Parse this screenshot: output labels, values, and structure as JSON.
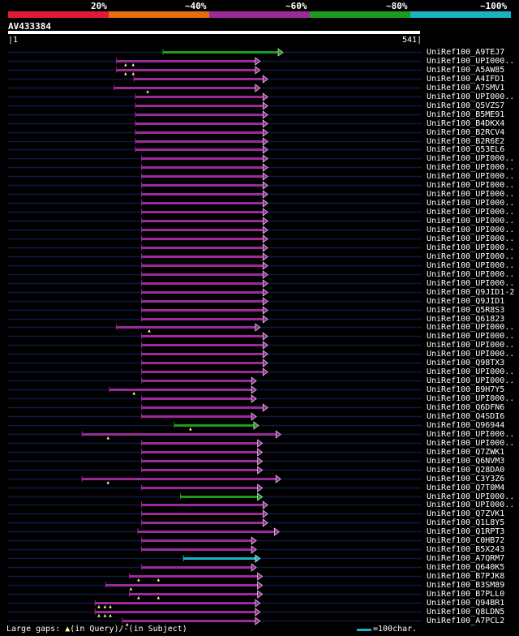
{
  "legend": [
    {
      "label": "20%",
      "color": "#e31a35"
    },
    {
      "label": "~40%",
      "color": "#e26d13"
    },
    {
      "label": "~60%",
      "color": "#9b2a9b"
    },
    {
      "label": "~80%",
      "color": "#1c9c1c"
    },
    {
      "label": "~100%",
      "color": "#1ab3c1"
    }
  ],
  "query": {
    "name": "AV433384",
    "start": "1",
    "end": "541"
  },
  "footer": {
    "gaps_prefix": "Large gaps: ",
    "gaps_query": "(in Query)/",
    "gaps_subject": "(in Subject)",
    "scale": "=100char."
  },
  "chart_data": {
    "type": "alignment-overview",
    "query_length": 541,
    "rows": [
      {
        "name": "UniRef100_A9TEJ7",
        "s": 204,
        "e": 355,
        "c": "green",
        "m": []
      },
      {
        "name": "UniRef100_UPI000..",
        "s": 143,
        "e": 325,
        "c": "purple",
        "m": [
          155,
          165
        ]
      },
      {
        "name": "UniRef100_A5AW85",
        "s": 143,
        "e": 325,
        "c": "purple",
        "m": [
          155,
          165
        ]
      },
      {
        "name": "UniRef100_A4IFD1",
        "s": 166,
        "e": 335,
        "c": "purple",
        "m": []
      },
      {
        "name": "UniRef100_A7SMV1",
        "s": 140,
        "e": 325,
        "c": "purple",
        "m": [
          184
        ]
      },
      {
        "name": "UniRef100_UPI000..",
        "s": 168,
        "e": 335,
        "c": "purple",
        "m": []
      },
      {
        "name": "UniRef100_Q5VZS7",
        "s": 168,
        "e": 335,
        "c": "purple",
        "m": []
      },
      {
        "name": "UniRef100_B5ME91",
        "s": 168,
        "e": 335,
        "c": "purple",
        "m": []
      },
      {
        "name": "UniRef100_B4DKX4",
        "s": 168,
        "e": 335,
        "c": "purple",
        "m": []
      },
      {
        "name": "UniRef100_B2RCV4",
        "s": 168,
        "e": 335,
        "c": "purple",
        "m": []
      },
      {
        "name": "UniRef100_B2R6E2",
        "s": 168,
        "e": 335,
        "c": "purple",
        "m": []
      },
      {
        "name": "UniRef100_Q53EL6",
        "s": 168,
        "e": 335,
        "c": "purple",
        "m": []
      },
      {
        "name": "UniRef100_UPI000..",
        "s": 176,
        "e": 335,
        "c": "purple",
        "m": []
      },
      {
        "name": "UniRef100_UPI000..",
        "s": 176,
        "e": 335,
        "c": "purple",
        "m": []
      },
      {
        "name": "UniRef100_UPI000..",
        "s": 176,
        "e": 335,
        "c": "purple",
        "m": []
      },
      {
        "name": "UniRef100_UPI000..",
        "s": 176,
        "e": 335,
        "c": "purple",
        "m": []
      },
      {
        "name": "UniRef100_UPI000..",
        "s": 176,
        "e": 335,
        "c": "purple",
        "m": []
      },
      {
        "name": "UniRef100_UPI000..",
        "s": 176,
        "e": 335,
        "c": "purple",
        "m": []
      },
      {
        "name": "UniRef100_UPI000..",
        "s": 176,
        "e": 335,
        "c": "purple",
        "m": []
      },
      {
        "name": "UniRef100_UPI000..",
        "s": 176,
        "e": 335,
        "c": "purple",
        "m": []
      },
      {
        "name": "UniRef100_UPI000..",
        "s": 176,
        "e": 335,
        "c": "purple",
        "m": []
      },
      {
        "name": "UniRef100_UPI000..",
        "s": 176,
        "e": 335,
        "c": "purple",
        "m": []
      },
      {
        "name": "UniRef100_UPI000..",
        "s": 176,
        "e": 335,
        "c": "purple",
        "m": []
      },
      {
        "name": "UniRef100_UPI000..",
        "s": 176,
        "e": 335,
        "c": "purple",
        "m": []
      },
      {
        "name": "UniRef100_UPI000..",
        "s": 176,
        "e": 335,
        "c": "purple",
        "m": []
      },
      {
        "name": "UniRef100_UPI000..",
        "s": 176,
        "e": 335,
        "c": "purple",
        "m": []
      },
      {
        "name": "UniRef100_UPI000..",
        "s": 176,
        "e": 335,
        "c": "purple",
        "m": []
      },
      {
        "name": "UniRef100_Q9JID1-2",
        "s": 176,
        "e": 335,
        "c": "purple",
        "m": []
      },
      {
        "name": "UniRef100_Q9JID1",
        "s": 176,
        "e": 335,
        "c": "purple",
        "m": []
      },
      {
        "name": "UniRef100_Q5R8S3",
        "s": 176,
        "e": 335,
        "c": "purple",
        "m": []
      },
      {
        "name": "UniRef100_Q61823",
        "s": 176,
        "e": 335,
        "c": "purple",
        "m": []
      },
      {
        "name": "UniRef100_UPI000..",
        "s": 143,
        "e": 325,
        "c": "purple",
        "m": [
          186
        ]
      },
      {
        "name": "UniRef100_UPI000..",
        "s": 176,
        "e": 335,
        "c": "purple",
        "m": []
      },
      {
        "name": "UniRef100_UPI000..",
        "s": 176,
        "e": 335,
        "c": "purple",
        "m": []
      },
      {
        "name": "UniRef100_UPI000..",
        "s": 176,
        "e": 335,
        "c": "purple",
        "m": []
      },
      {
        "name": "UniRef100_Q98TX3",
        "s": 176,
        "e": 335,
        "c": "purple",
        "m": []
      },
      {
        "name": "UniRef100_UPI000..",
        "s": 176,
        "e": 335,
        "c": "purple",
        "m": []
      },
      {
        "name": "UniRef100_UPI000..",
        "s": 176,
        "e": 320,
        "c": "purple",
        "m": []
      },
      {
        "name": "UniRef100_B9H7Y5",
        "s": 134,
        "e": 320,
        "c": "purple",
        "m": [
          166
        ]
      },
      {
        "name": "UniRef100_UPI000..",
        "s": 176,
        "e": 320,
        "c": "purple",
        "m": []
      },
      {
        "name": "UniRef100_Q6DFN6",
        "s": 176,
        "e": 335,
        "c": "purple",
        "m": []
      },
      {
        "name": "UniRef100_Q4SDI6",
        "s": 176,
        "e": 320,
        "c": "purple",
        "m": []
      },
      {
        "name": "UniRef100_Q96944",
        "s": 219,
        "e": 323,
        "c": "green",
        "m": [
          240
        ]
      },
      {
        "name": "UniRef100_UPI000..",
        "s": 98,
        "e": 352,
        "c": "purple",
        "m": [
          132
        ]
      },
      {
        "name": "UniRef100_UPI000..",
        "s": 176,
        "e": 328,
        "c": "purple",
        "m": []
      },
      {
        "name": "UniRef100_Q7ZWK1",
        "s": 176,
        "e": 328,
        "c": "purple",
        "m": []
      },
      {
        "name": "UniRef100_Q6NVM3",
        "s": 176,
        "e": 328,
        "c": "purple",
        "m": []
      },
      {
        "name": "UniRef100_Q28DA0",
        "s": 176,
        "e": 328,
        "c": "purple",
        "m": []
      },
      {
        "name": "UniRef100_C3Y3Z6",
        "s": 98,
        "e": 352,
        "c": "purple",
        "m": [
          132
        ]
      },
      {
        "name": "UniRef100_Q7T0M4",
        "s": 176,
        "e": 328,
        "c": "purple",
        "m": []
      },
      {
        "name": "UniRef100_UPI000..",
        "s": 227,
        "e": 328,
        "c": "green",
        "m": []
      },
      {
        "name": "UniRef100_UPI000..",
        "s": 176,
        "e": 335,
        "c": "purple",
        "m": []
      },
      {
        "name": "UniRef100_Q7ZVK1",
        "s": 176,
        "e": 335,
        "c": "purple",
        "m": []
      },
      {
        "name": "UniRef100_Q1L8Y5",
        "s": 176,
        "e": 335,
        "c": "purple",
        "m": []
      },
      {
        "name": "UniRef100_Q1RPT3",
        "s": 171,
        "e": 350,
        "c": "purple",
        "m": []
      },
      {
        "name": "UniRef100_C0HB72",
        "s": 176,
        "e": 320,
        "c": "purple",
        "m": []
      },
      {
        "name": "UniRef100_B5X243",
        "s": 176,
        "e": 320,
        "c": "purple",
        "m": []
      },
      {
        "name": "UniRef100_A7QRM7",
        "s": 231,
        "e": 325,
        "c": "cyan",
        "m": []
      },
      {
        "name": "UniRef100_Q640K5",
        "s": 176,
        "e": 320,
        "c": "purple",
        "m": []
      },
      {
        "name": "UniRef100_B7PJK8",
        "s": 160,
        "e": 328,
        "c": "purple",
        "m": [
          172,
          198
        ]
      },
      {
        "name": "UniRef100_B3SM89",
        "s": 129,
        "e": 328,
        "c": "purple",
        "m": [
          162
        ]
      },
      {
        "name": "UniRef100_B7PLL0",
        "s": 160,
        "e": 328,
        "c": "purple",
        "m": [
          172,
          198
        ]
      },
      {
        "name": "UniRef100_Q94BR1",
        "s": 115,
        "e": 325,
        "c": "purple",
        "m": [
          120,
          128,
          135
        ]
      },
      {
        "name": "UniRef100_Q8LDN5",
        "s": 115,
        "e": 325,
        "c": "purple",
        "m": [
          120,
          128,
          135
        ]
      },
      {
        "name": "UniRef100_A7PCL2",
        "s": 151,
        "e": 325,
        "c": "purple",
        "m": [
          157
        ]
      }
    ]
  }
}
